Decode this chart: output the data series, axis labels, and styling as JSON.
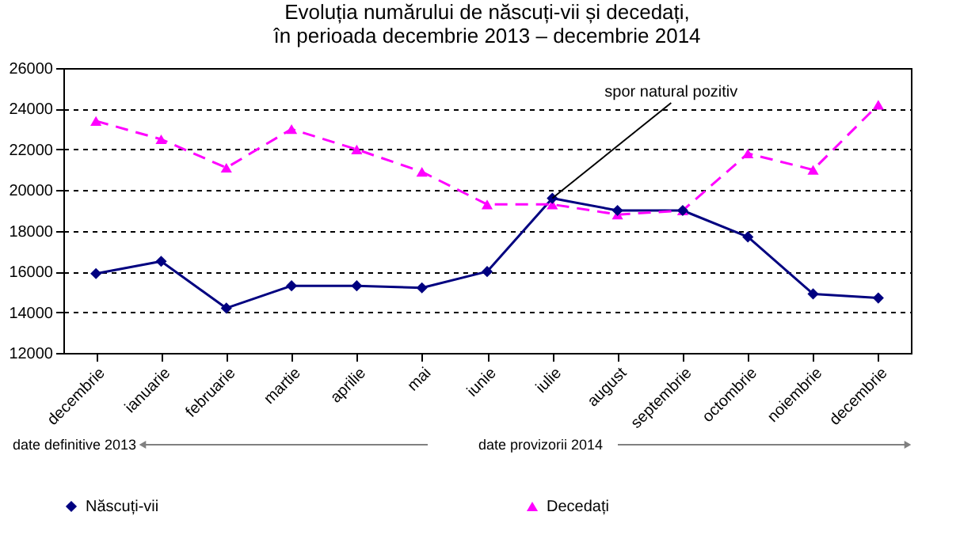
{
  "chart_data": {
    "type": "line",
    "title": [
      "Evoluția numărului de născuți-vii și decedați,",
      "în perioada  decembrie 2013 – decembrie 2014"
    ],
    "categories": [
      "decembrie",
      "ianuarie",
      "februarie",
      "martie",
      "aprilie",
      "mai",
      "iunie",
      "iulie",
      "august",
      "septembrie",
      "octombrie",
      "noiembrie",
      "decembrie"
    ],
    "series": [
      {
        "name": "Născuți-vii",
        "color": "#000080",
        "marker": "diamond",
        "line_style": "solid",
        "values": [
          15900,
          16500,
          14200,
          15300,
          15300,
          15200,
          16000,
          19600,
          19000,
          19000,
          17700,
          14900,
          14700
        ]
      },
      {
        "name": "Decedați",
        "color": "#ff00ff",
        "marker": "triangle",
        "line_style": "dashed",
        "values": [
          23400,
          22500,
          21100,
          23000,
          22000,
          20900,
          19300,
          19300,
          18800,
          19000,
          21800,
          21000,
          24200
        ]
      }
    ],
    "ylim": [
      12000,
      26000
    ],
    "yticks": [
      12000,
      14000,
      16000,
      18000,
      20000,
      22000,
      24000,
      26000
    ],
    "grid": "y",
    "legend": "bottom",
    "annotations": [
      {
        "text": "spor natural pozitiv",
        "x": "iulie",
        "y": 19600
      },
      "date definitive 2013",
      "date provizorii 2014"
    ]
  }
}
